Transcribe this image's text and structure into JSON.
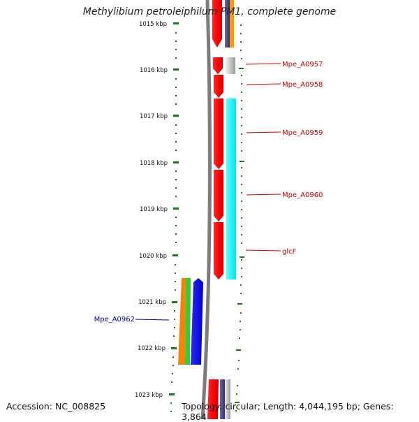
{
  "title": "Methylibium petroleiphilum PM1, complete genome",
  "ticks": [
    {
      "label": "1015 kbp"
    },
    {
      "label": "1016 kbp"
    },
    {
      "label": "1017 kbp"
    },
    {
      "label": "1018 kbp"
    },
    {
      "label": "1019 kbp"
    },
    {
      "label": "1020 kbp"
    },
    {
      "label": "1021 kbp"
    },
    {
      "label": "1022 kbp"
    },
    {
      "label": "1023 kbp"
    }
  ],
  "features": [
    {
      "label": "Mpe_A0957",
      "color": "#cc0000"
    },
    {
      "label": "Mpe_A0958",
      "color": "#cc0000"
    },
    {
      "label": "Mpe_A0959",
      "color": "#cc0000"
    },
    {
      "label": "Mpe_A0960",
      "color": "#cc0000"
    },
    {
      "label": "glcF",
      "color": "#cc0000"
    },
    {
      "label": "Mpe_A0962",
      "color": "#0000aa"
    }
  ],
  "colors": {
    "cds_red": "#ff0000",
    "cyan": "#00ffff",
    "orange": "#ff8000",
    "green": "#33cc33",
    "blue": "#0000ff",
    "tick_green": "#008000",
    "backbone": "#888888"
  },
  "footer": {
    "accession": "Accession: NC_008825",
    "topology": "Topology: circular; Length: 4,044,195 bp; Genes: 3,864"
  }
}
